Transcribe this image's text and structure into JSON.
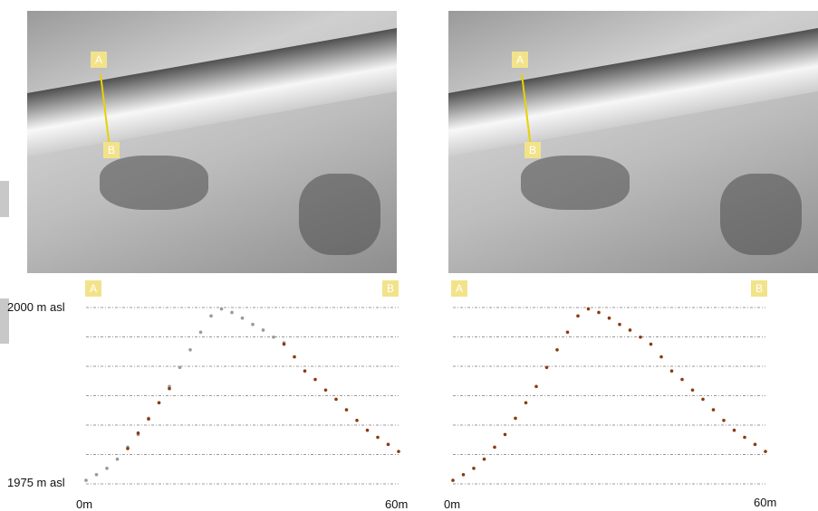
{
  "panels": [
    {
      "markers": {
        "start": "A",
        "end": "B"
      },
      "ylabel_top": "2000 m asl",
      "ylabel_bottom": "1975 m asl",
      "xlabel_start": "0m",
      "xlabel_end": "60m"
    },
    {
      "markers": {
        "start": "A",
        "end": "B"
      },
      "xlabel_start": "0m",
      "xlabel_end": "60m"
    }
  ],
  "colors": {
    "terrain": "#8b3a10",
    "unclassified": "#999999",
    "grid": "#777777",
    "marker": "#f2e38a",
    "profile_line": "#e8d200"
  },
  "chart_data": [
    {
      "type": "scatter",
      "xlabel": "",
      "ylabel": "",
      "xlim": [
        0,
        60
      ],
      "ylim": [
        1975,
        2000
      ],
      "grid": true,
      "series": [
        {
          "color": "#999999",
          "x": [
            0,
            2,
            4,
            6,
            8,
            10,
            12,
            14,
            16,
            18,
            20,
            22,
            24,
            26,
            28,
            30,
            32,
            34,
            36,
            38
          ],
          "y": [
            1975.5,
            1976.3,
            1977.2,
            1978.5,
            1980.2,
            1982.0,
            1984.3,
            1986.5,
            1988.8,
            1991.5,
            1994.0,
            1996.5,
            1998.8,
            1999.8,
            1999.3,
            1998.5,
            1997.6,
            1996.8,
            1995.8,
            1995.0
          ]
        },
        {
          "color": "#8b3a10",
          "x": [
            8,
            10,
            12,
            14,
            16,
            38,
            40,
            42,
            44,
            46,
            48,
            50,
            52,
            54,
            56,
            58,
            60
          ],
          "y": [
            1980.0,
            1982.2,
            1984.2,
            1986.5,
            1988.5,
            1994.8,
            1993.0,
            1991.0,
            1989.8,
            1988.3,
            1987.0,
            1985.5,
            1984.0,
            1982.6,
            1981.6,
            1980.6,
            1979.6
          ]
        }
      ]
    },
    {
      "type": "scatter",
      "xlabel": "",
      "ylabel": "",
      "xlim": [
        0,
        60
      ],
      "ylim": [
        1975,
        2000
      ],
      "grid": true,
      "series": [
        {
          "color": "#8b3a10",
          "x": [
            0,
            2,
            4,
            6,
            8,
            10,
            12,
            14,
            16,
            18,
            20,
            22,
            24,
            26,
            28,
            30,
            32,
            34,
            36,
            38,
            40,
            42,
            44,
            46,
            48,
            50,
            52,
            54,
            56,
            58,
            60
          ],
          "y": [
            1975.5,
            1976.3,
            1977.2,
            1978.5,
            1980.2,
            1982.0,
            1984.3,
            1986.5,
            1988.8,
            1991.5,
            1994.0,
            1996.5,
            1998.8,
            1999.8,
            1999.3,
            1998.5,
            1997.6,
            1996.8,
            1995.8,
            1994.8,
            1993.0,
            1991.0,
            1989.8,
            1988.3,
            1987.0,
            1985.5,
            1984.0,
            1982.6,
            1981.6,
            1980.6,
            1979.6
          ]
        }
      ]
    }
  ]
}
